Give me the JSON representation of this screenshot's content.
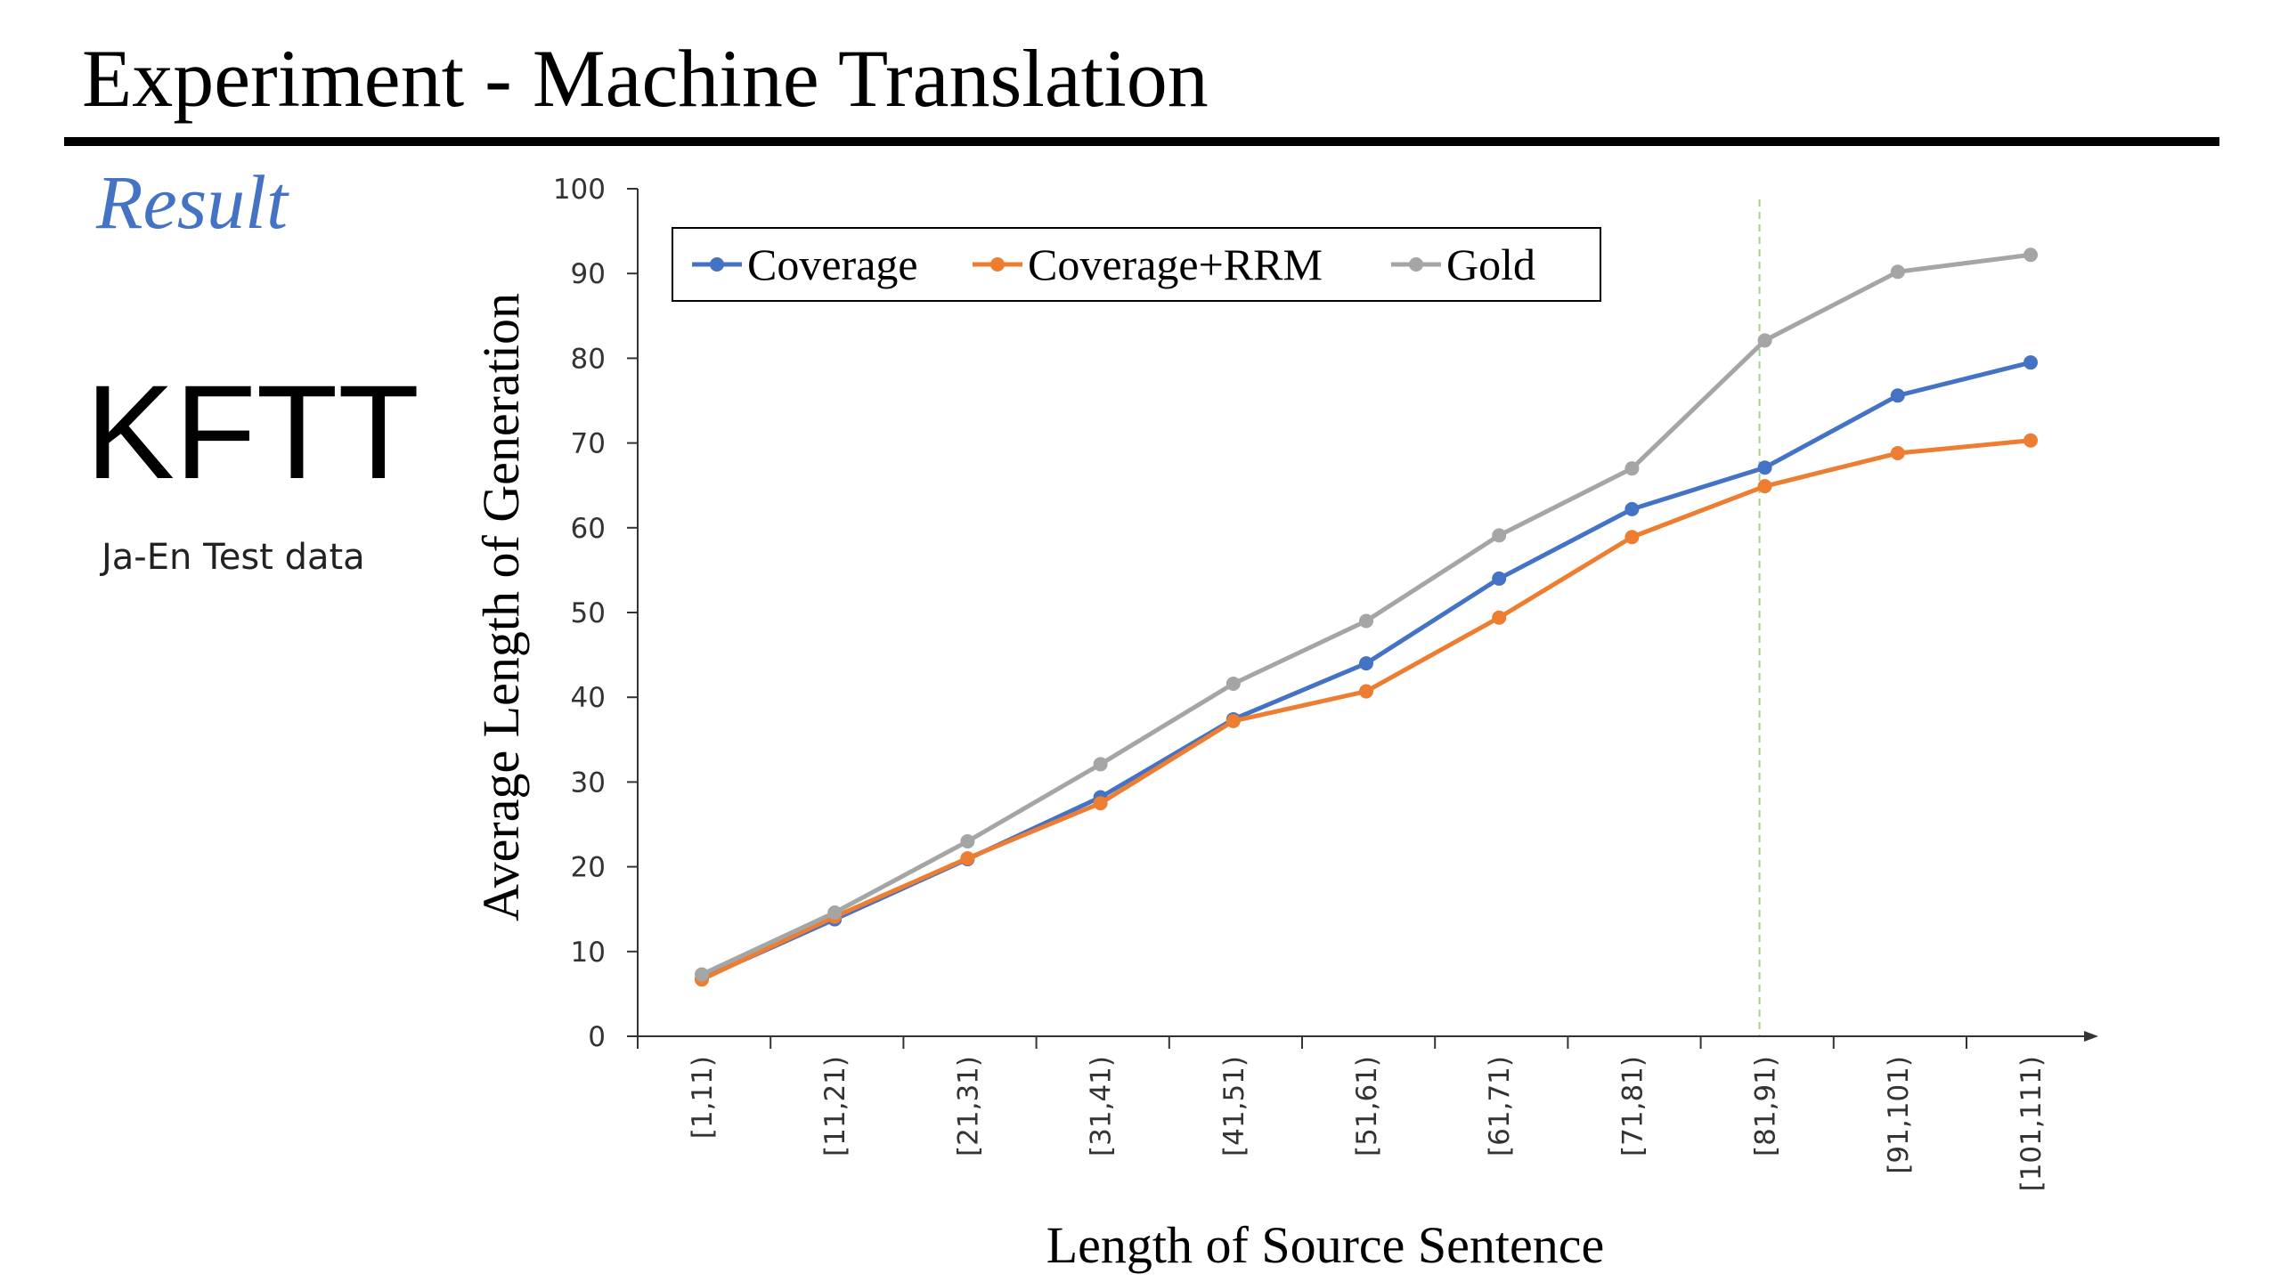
{
  "slide": {
    "title": "Experiment - Machine Translation",
    "section_heading": "Result",
    "dataset_name": "KFTT",
    "dataset_description": "Ja-En Test data"
  },
  "chart_data": {
    "type": "line",
    "title": "",
    "xlabel": "Length of Source Sentence",
    "ylabel": "Average Length of Generation",
    "ylim": [
      0,
      100
    ],
    "yticks": [
      0,
      10,
      20,
      30,
      40,
      50,
      60,
      70,
      80,
      90,
      100
    ],
    "categories": [
      "[1,11)",
      "[11,21)",
      "[21,31)",
      "[31,41)",
      "[41,51)",
      "[51,61)",
      "[61,71)",
      "[71,81)",
      "[81,91)",
      "[91,101)",
      "[101,111)"
    ],
    "series": [
      {
        "name": "Coverage",
        "color": "#4472c4",
        "values": [
          6.8,
          13.8,
          20.9,
          28.2,
          37.4,
          44.0,
          54.0,
          62.2,
          67.1,
          75.6,
          79.5
        ]
      },
      {
        "name": "Coverage+RRM",
        "color": "#ed7d31",
        "values": [
          6.7,
          14.1,
          21.0,
          27.5,
          37.2,
          40.7,
          49.4,
          58.9,
          64.9,
          68.8,
          70.3
        ]
      },
      {
        "name": "Gold",
        "color": "#a5a5a5",
        "values": [
          7.3,
          14.6,
          23.0,
          32.1,
          41.6,
          49.0,
          59.1,
          67.0,
          82.1,
          90.2,
          92.2
        ]
      }
    ],
    "reference_line": {
      "category": "[81,91)",
      "color": "#a9d08e",
      "style": "dashed"
    },
    "legend_position": "top-left"
  }
}
